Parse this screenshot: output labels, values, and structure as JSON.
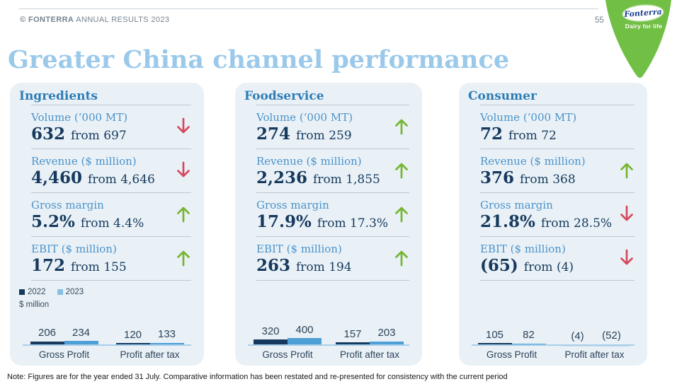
{
  "colors": {
    "page_bg": "#ffffff",
    "title": "#9BC9EA",
    "header_text": "#75838F",
    "card_bg": "#E9F1F7",
    "panel_title": "#2E7CB4",
    "metric_label": "#4B92C9",
    "value": "#16395D",
    "divider": "#BEC8D2",
    "arrow_up": "#76B52F",
    "arrow_down": "#D5495C",
    "bar_2022": "#16395D",
    "bar_2023": "#4D9FD6",
    "legend_2023": "#85C1E5",
    "baseline": "#A9CFEA",
    "chart_text": "#2C4258",
    "logo_green": "#71BF44",
    "logo_blue": "#1A3E8F",
    "note_text": "#1A1A1A"
  },
  "header": {
    "copyright_prefix": "© FONTERRA",
    "copyright_rest": " ANNUAL RESULTS 2023",
    "page_number": "55"
  },
  "logo": {
    "brand": "Fonterra",
    "tagline": "Dairy for life"
  },
  "title": "Greater China channel performance",
  "legend": {
    "items": [
      {
        "label": "2022"
      },
      {
        "label": "2023"
      }
    ],
    "unit": "$ million"
  },
  "note": "Note: Figures are for the year ended 31 July. Comparative information has been restated and re-presented for consistency with the current period",
  "panels": [
    {
      "name": "Ingredients",
      "metrics": [
        {
          "label": "Volume (‘000 MT)",
          "value": "632",
          "from": "from 697",
          "trend": "down"
        },
        {
          "label": "Revenue ($ million)",
          "value": "4,460",
          "from": "from 4,646",
          "trend": "down"
        },
        {
          "label": "Gross margin",
          "value": "5.2%",
          "from": "from 4.4%",
          "trend": "up"
        },
        {
          "label": "EBIT ($ million)",
          "value": "172",
          "from": "from 155",
          "trend": "up"
        }
      ],
      "chart": {
        "groups": [
          {
            "label": "Gross Profit",
            "bars": [
              {
                "series": "2022",
                "display": "206",
                "value": 206
              },
              {
                "series": "2023",
                "display": "234",
                "value": 234
              }
            ]
          },
          {
            "label": "Profit after tax",
            "bars": [
              {
                "series": "2022",
                "display": "120",
                "value": 120
              },
              {
                "series": "2023",
                "display": "133",
                "value": 133
              }
            ]
          }
        ]
      }
    },
    {
      "name": "Foodservice",
      "metrics": [
        {
          "label": "Volume (‘000 MT)",
          "value": "274",
          "from": "from 259",
          "trend": "up"
        },
        {
          "label": "Revenue ($ million)",
          "value": "2,236",
          "from": "from 1,855",
          "trend": "up"
        },
        {
          "label": "Gross margin",
          "value": "17.9%",
          "from": "from 17.3%",
          "trend": "up"
        },
        {
          "label": "EBIT ($ million)",
          "value": "263",
          "from": "from 194",
          "trend": "up"
        }
      ],
      "chart": {
        "groups": [
          {
            "label": "Gross Profit",
            "bars": [
              {
                "series": "2022",
                "display": "320",
                "value": 320
              },
              {
                "series": "2023",
                "display": "400",
                "value": 400
              }
            ]
          },
          {
            "label": "Profit after tax",
            "bars": [
              {
                "series": "2022",
                "display": "157",
                "value": 157
              },
              {
                "series": "2023",
                "display": "203",
                "value": 203
              }
            ]
          }
        ]
      }
    },
    {
      "name": "Consumer",
      "metrics": [
        {
          "label": "Volume (‘000 MT)",
          "value": "72",
          "from": "from 72",
          "trend": "none"
        },
        {
          "label": "Revenue ($ million)",
          "value": "376",
          "from": "from 368",
          "trend": "up"
        },
        {
          "label": "Gross margin",
          "value": "21.8%",
          "from": "from 28.5%",
          "trend": "down"
        },
        {
          "label": "EBIT ($ million)",
          "value": "(65)",
          "from": "from (4)",
          "trend": "down"
        }
      ],
      "chart": {
        "groups": [
          {
            "label": "Gross Profit",
            "bars": [
              {
                "series": "2022",
                "display": "105",
                "value": 105
              },
              {
                "series": "2023",
                "display": "82",
                "value": 82
              }
            ]
          },
          {
            "label": "Profit after tax",
            "bars": [
              {
                "series": "2022",
                "display": "(4)",
                "value": -4
              },
              {
                "series": "2023",
                "display": "(52)",
                "value": -52
              }
            ]
          }
        ]
      }
    }
  ],
  "chart_data": [
    {
      "type": "bar",
      "title": "Ingredients ($ million)",
      "categories": [
        "Gross Profit",
        "Profit after tax"
      ],
      "series": [
        {
          "name": "2022",
          "values": [
            206,
            120
          ]
        },
        {
          "name": "2023",
          "values": [
            234,
            133
          ]
        }
      ]
    },
    {
      "type": "bar",
      "title": "Foodservice ($ million)",
      "categories": [
        "Gross Profit",
        "Profit after tax"
      ],
      "series": [
        {
          "name": "2022",
          "values": [
            320,
            157
          ]
        },
        {
          "name": "2023",
          "values": [
            400,
            203
          ]
        }
      ]
    },
    {
      "type": "bar",
      "title": "Consumer ($ million)",
      "categories": [
        "Gross Profit",
        "Profit after tax"
      ],
      "series": [
        {
          "name": "2022",
          "values": [
            105,
            -4
          ]
        },
        {
          "name": "2023",
          "values": [
            82,
            -52
          ]
        }
      ]
    }
  ]
}
